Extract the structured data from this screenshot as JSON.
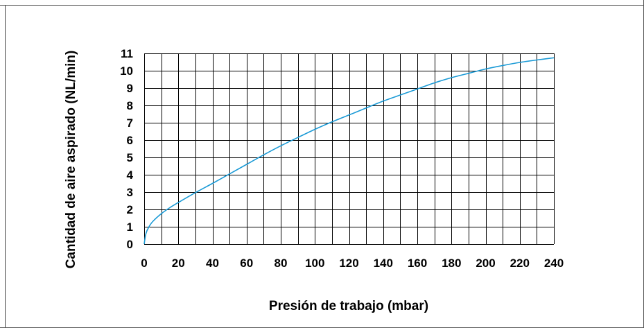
{
  "chart_data": {
    "type": "line",
    "title": "",
    "xlabel": "Presión de trabajo (mbar)",
    "ylabel": "Cantidad de aire aspirado (NL/min)",
    "xlim": [
      0,
      240
    ],
    "ylim": [
      0,
      11
    ],
    "x_ticks": [
      "0",
      "20",
      "40",
      "60",
      "80",
      "100",
      "120",
      "140",
      "160",
      "180",
      "200",
      "220",
      "240"
    ],
    "y_ticks": [
      "0",
      "1",
      "2",
      "3",
      "4",
      "5",
      "6",
      "7",
      "8",
      "9",
      "10",
      "11"
    ],
    "grid": true,
    "line_color": "#1a9ad6",
    "series": [
      {
        "x": [
          0,
          1,
          2.5,
          5,
          10,
          15,
          20,
          30,
          40,
          50,
          60,
          70,
          80,
          90,
          100,
          110,
          120,
          130,
          140,
          150,
          160,
          170,
          180,
          190,
          200,
          210,
          220,
          230,
          240
        ],
        "values": [
          0,
          0.6,
          0.95,
          1.3,
          1.75,
          2.1,
          2.4,
          2.97,
          3.5,
          4.05,
          4.6,
          5.15,
          5.67,
          6.15,
          6.62,
          7.05,
          7.45,
          7.85,
          8.25,
          8.6,
          8.95,
          9.3,
          9.6,
          9.85,
          10.1,
          10.3,
          10.48,
          10.62,
          10.75
        ]
      }
    ]
  }
}
